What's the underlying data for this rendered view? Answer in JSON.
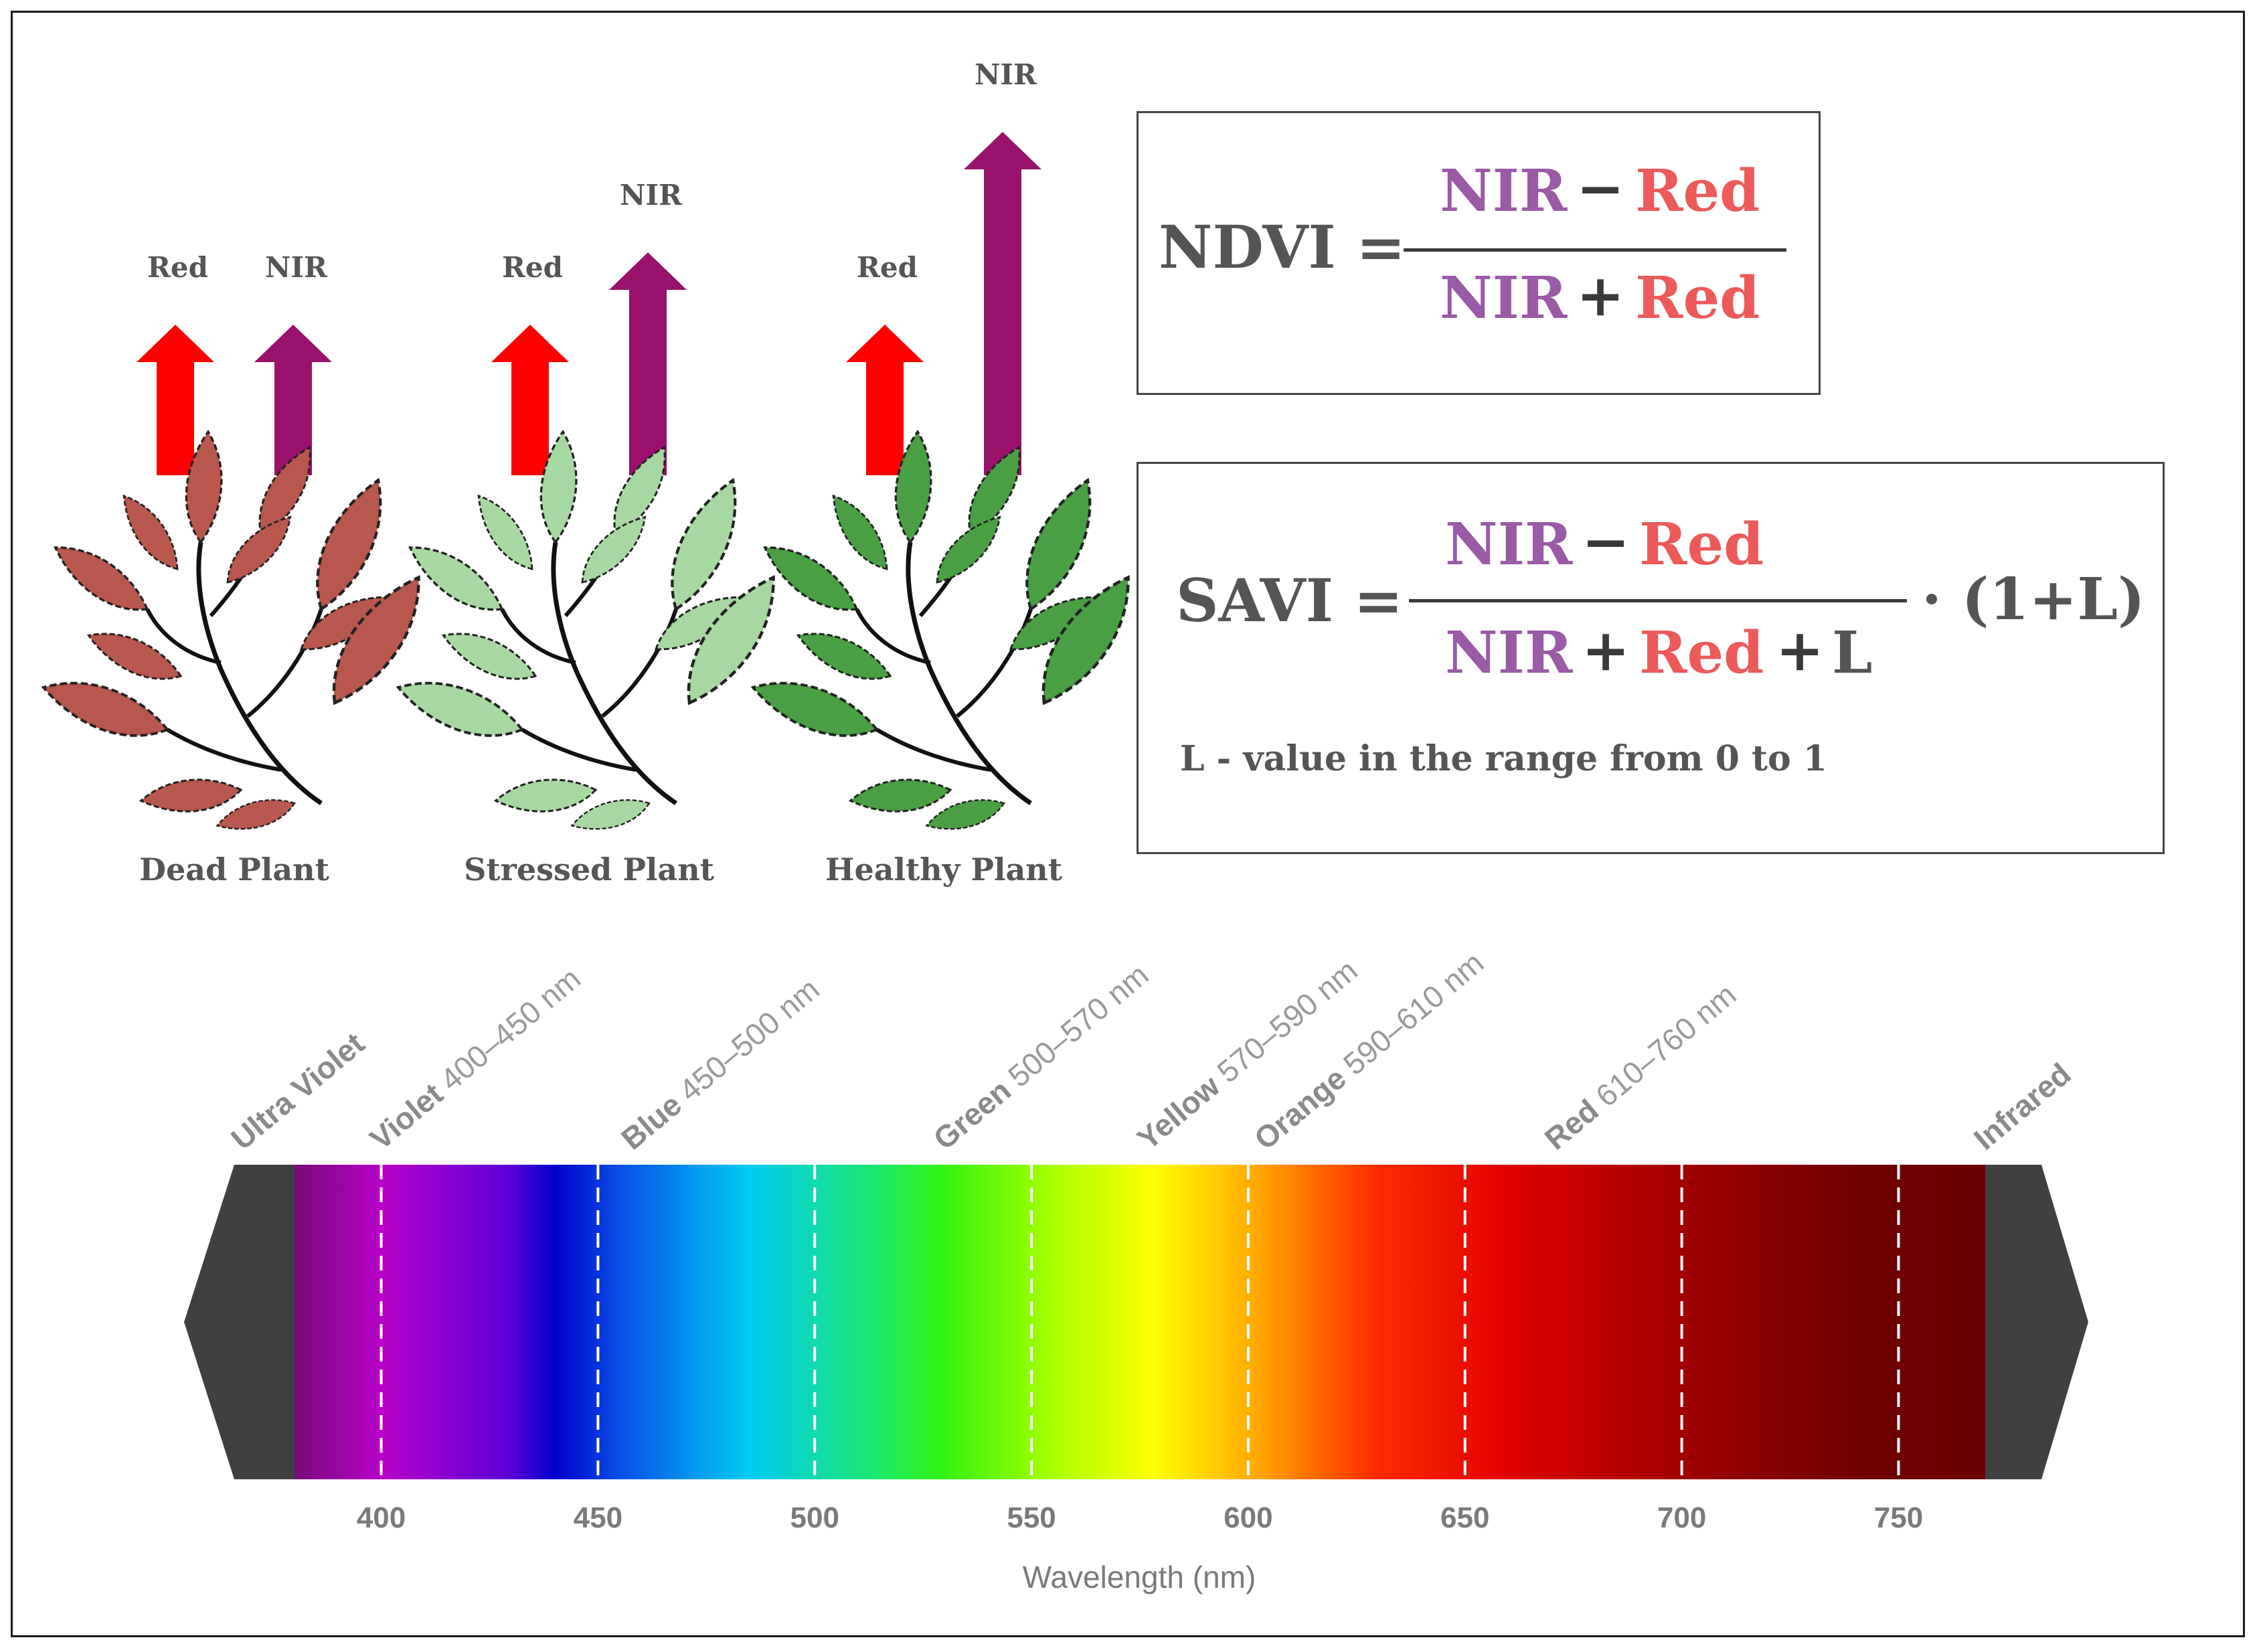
{
  "colors": {
    "red": "#ff0000",
    "nir": "#99116a",
    "nir_text": "#9a5aa6",
    "red_text": "#ec5a5a",
    "dark_text": "#555555",
    "dead_leaf": "#b8574d",
    "stressed_leaf": "#a8d8a2",
    "healthy_leaf": "#4a9e44"
  },
  "plants": [
    {
      "label": "Dead Plant",
      "red_label": "Red",
      "nir_label": "NIR",
      "red_level": 0.25,
      "nir_level": 0.25,
      "leaf_color": "#b8574d"
    },
    {
      "label": "Stressed Plant",
      "red_label": "Red",
      "nir_label": "NIR",
      "red_level": 0.25,
      "nir_level": 0.37,
      "leaf_color": "#a8d8a2"
    },
    {
      "label": "Healthy Plant",
      "red_label": "Red",
      "nir_label": "NIR",
      "red_level": 0.25,
      "nir_level": 0.57,
      "leaf_color": "#4a9e44"
    }
  ],
  "ndvi": {
    "name": "NDVI =",
    "num_a": "NIR",
    "num_op": "−",
    "num_b": "Red",
    "den_a": "NIR",
    "den_op": "+",
    "den_b": "Red"
  },
  "savi": {
    "name": "SAVI =",
    "num_a": "NIR",
    "num_op": "−",
    "num_b": "Red",
    "den_a": "NIR",
    "den_op": "+",
    "den_b": "Red",
    "den_op2": "+",
    "den_c": "L",
    "factor": "· (1+L)",
    "note": "L - value in the range from 0 to 1"
  },
  "spectrum": {
    "xlabel": "Wavelength (nm)",
    "xlim": [
      380,
      770
    ],
    "ticks": [
      400,
      450,
      500,
      550,
      600,
      650,
      700,
      750
    ],
    "bands": [
      {
        "name": "Ultra Violet",
        "range": "",
        "at": 368
      },
      {
        "name": "Violet",
        "range": "400–450 nm",
        "at": 400
      },
      {
        "name": "Blue",
        "range": "450–500 nm",
        "at": 458
      },
      {
        "name": "Green",
        "range": "500–570 nm",
        "at": 530
      },
      {
        "name": "Yellow",
        "range": "570–590 nm",
        "at": 577
      },
      {
        "name": "Orange",
        "range": "590–610 nm",
        "at": 604
      },
      {
        "name": "Red",
        "range": "610–760 nm",
        "at": 671
      },
      {
        "name": "Infrared",
        "range": "",
        "at": 770
      }
    ],
    "gradient_stops": [
      {
        "nm": 380,
        "color": "#7a0a7a"
      },
      {
        "nm": 400,
        "color": "#b800c8"
      },
      {
        "nm": 430,
        "color": "#5a00d8"
      },
      {
        "nm": 440,
        "color": "#0000cc"
      },
      {
        "nm": 455,
        "color": "#0a4fe6"
      },
      {
        "nm": 485,
        "color": "#00ccf4"
      },
      {
        "nm": 515,
        "color": "#1ee868"
      },
      {
        "nm": 530,
        "color": "#33f210"
      },
      {
        "nm": 555,
        "color": "#a8ff00"
      },
      {
        "nm": 578,
        "color": "#ffff00"
      },
      {
        "nm": 600,
        "color": "#ffb000"
      },
      {
        "nm": 630,
        "color": "#ff2a00"
      },
      {
        "nm": 660,
        "color": "#e00000"
      },
      {
        "nm": 700,
        "color": "#a00000"
      },
      {
        "nm": 740,
        "color": "#700000"
      },
      {
        "nm": 770,
        "color": "#6a0000"
      }
    ]
  }
}
